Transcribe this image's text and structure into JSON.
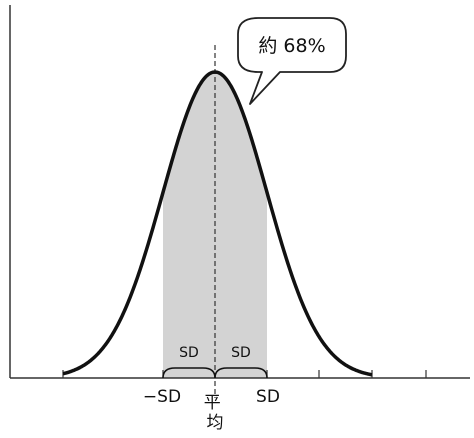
{
  "callout": {
    "text": "約 68%"
  },
  "sd_brackets": {
    "left": "SD",
    "right": "SD"
  },
  "x_labels": {
    "minus_sd": "−SD",
    "mean": "平\n均",
    "plus_sd": "SD"
  },
  "colors": {
    "curve": "#111111",
    "shade": "#d3d3d3",
    "axis": "#333333",
    "callout_border": "#222222",
    "background": "#ffffff"
  }
}
